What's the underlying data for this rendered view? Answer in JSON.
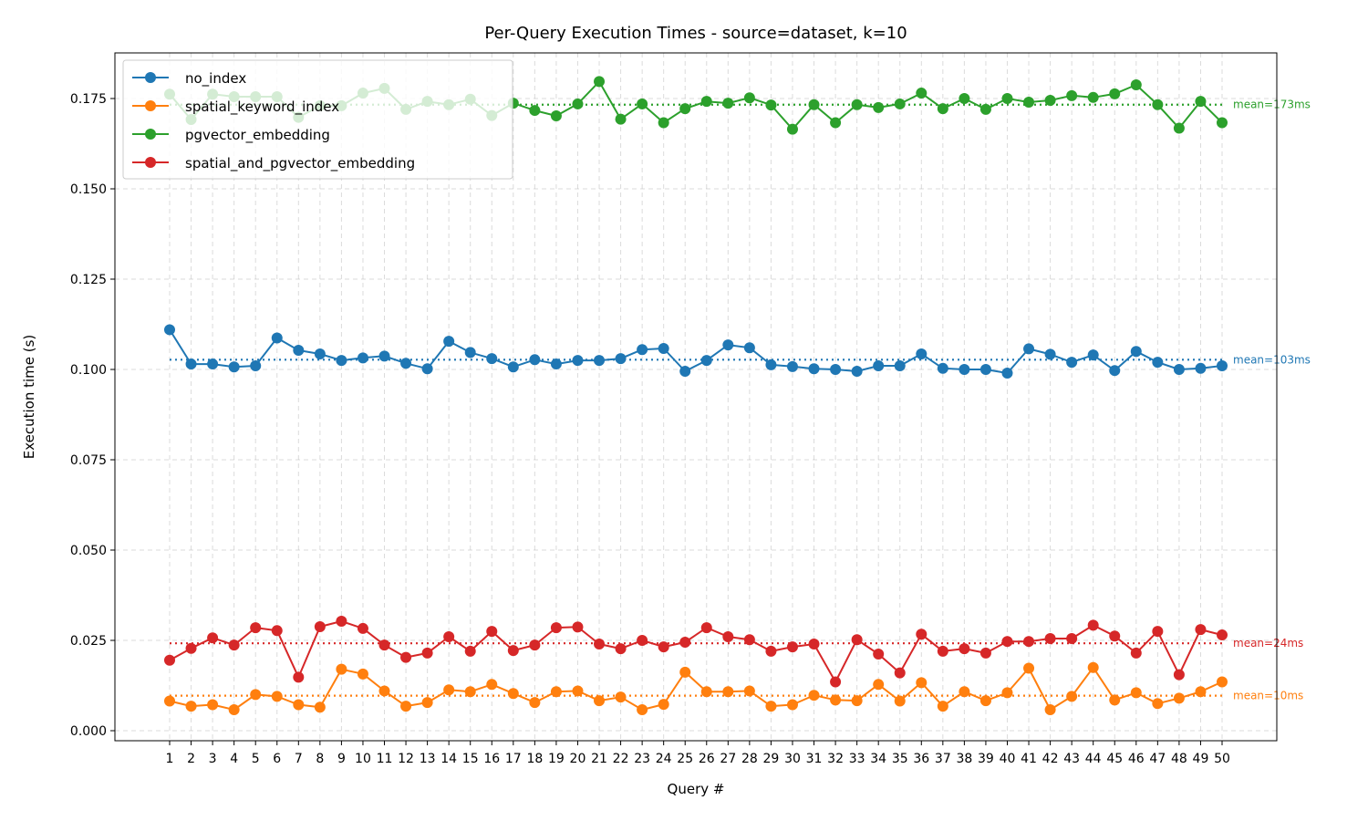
{
  "chart_data": {
    "type": "line",
    "title": "Per-Query Execution Times - source=dataset, k=10",
    "xlabel": "Query #",
    "ylabel": "Execution time (s)",
    "x": [
      1,
      2,
      3,
      4,
      5,
      6,
      7,
      8,
      9,
      10,
      11,
      12,
      13,
      14,
      15,
      16,
      17,
      18,
      19,
      20,
      21,
      22,
      23,
      24,
      25,
      26,
      27,
      28,
      29,
      30,
      31,
      32,
      33,
      34,
      35,
      36,
      37,
      38,
      39,
      40,
      41,
      42,
      43,
      44,
      45,
      46,
      47,
      48,
      49,
      50
    ],
    "ylim": [
      -0.004,
      0.188
    ],
    "yticks": [
      0.0,
      0.025,
      0.05,
      0.075,
      0.1,
      0.125,
      0.15,
      0.175
    ],
    "ytick_labels": [
      "0.000",
      "0.025",
      "0.050",
      "0.075",
      "0.100",
      "0.125",
      "0.150",
      "0.175"
    ],
    "grid": true,
    "legend_position": "top-left",
    "series": [
      {
        "name": "no_index",
        "color": "#1f77b4",
        "values": [
          0.111,
          0.1015,
          0.1015,
          0.1007,
          0.101,
          0.1087,
          0.1053,
          0.1043,
          0.1025,
          0.1032,
          0.1037,
          0.1017,
          0.1002,
          0.1078,
          0.1047,
          0.103,
          0.1007,
          0.1027,
          0.1015,
          0.1025,
          0.1025,
          0.103,
          0.1055,
          0.1058,
          0.0995,
          0.1025,
          0.1068,
          0.106,
          0.1013,
          0.1008,
          0.1002,
          0.1,
          0.0995,
          0.101,
          0.101,
          0.1043,
          0.1003,
          0.1,
          0.1,
          0.099,
          0.1057,
          0.1042,
          0.102,
          0.104,
          0.0997,
          0.105,
          0.102,
          0.1,
          0.1003,
          0.101
        ],
        "mean": 0.1027,
        "mean_label": "mean=103ms"
      },
      {
        "name": "spatial_keyword_index",
        "color": "#ff7f0e",
        "values": [
          0.0082,
          0.0068,
          0.0072,
          0.0058,
          0.01,
          0.0095,
          0.0072,
          0.0065,
          0.017,
          0.0157,
          0.011,
          0.0068,
          0.0078,
          0.0113,
          0.0108,
          0.0128,
          0.0103,
          0.0078,
          0.0108,
          0.011,
          0.0083,
          0.0093,
          0.0058,
          0.0073,
          0.0162,
          0.0108,
          0.0108,
          0.011,
          0.0068,
          0.0072,
          0.0098,
          0.0085,
          0.0083,
          0.0128,
          0.0082,
          0.0133,
          0.0068,
          0.0108,
          0.0083,
          0.0105,
          0.0173,
          0.0058,
          0.0095,
          0.0175,
          0.0085,
          0.0105,
          0.0075,
          0.009,
          0.0108,
          0.0135
        ],
        "mean": 0.0097,
        "mean_label": "mean=10ms"
      },
      {
        "name": "pgvector_embedding",
        "color": "#2ca02c",
        "values": [
          0.1762,
          0.1692,
          0.1762,
          0.1755,
          0.1755,
          0.1755,
          0.1698,
          0.173,
          0.173,
          0.1765,
          0.1778,
          0.172,
          0.1742,
          0.1733,
          0.1748,
          0.1703,
          0.1737,
          0.1717,
          0.1702,
          0.1735,
          0.1797,
          0.1693,
          0.1735,
          0.1683,
          0.1722,
          0.1742,
          0.1737,
          0.1752,
          0.1732,
          0.1665,
          0.1733,
          0.1683,
          0.1733,
          0.1725,
          0.1735,
          0.1765,
          0.1722,
          0.175,
          0.172,
          0.175,
          0.174,
          0.1745,
          0.1758,
          0.1753,
          0.1763,
          0.1788,
          0.1733,
          0.1668,
          0.1742,
          0.1683
        ],
        "mean": 0.1733,
        "mean_label": "mean=173ms"
      },
      {
        "name": "spatial_and_pgvector_embedding",
        "color": "#d62728",
        "values": [
          0.0195,
          0.0228,
          0.0257,
          0.0237,
          0.0285,
          0.0277,
          0.0148,
          0.0288,
          0.0303,
          0.0283,
          0.0237,
          0.0203,
          0.0215,
          0.026,
          0.022,
          0.0275,
          0.0222,
          0.0237,
          0.0285,
          0.0287,
          0.024,
          0.0227,
          0.025,
          0.0232,
          0.0245,
          0.0285,
          0.026,
          0.0252,
          0.022,
          0.0232,
          0.024,
          0.0135,
          0.0252,
          0.0212,
          0.016,
          0.0267,
          0.022,
          0.0227,
          0.0215,
          0.0247,
          0.0247,
          0.0255,
          0.0255,
          0.0292,
          0.0262,
          0.0215,
          0.0275,
          0.0155,
          0.028,
          0.0265
        ],
        "mean": 0.0242,
        "mean_label": "mean=24ms"
      }
    ]
  }
}
